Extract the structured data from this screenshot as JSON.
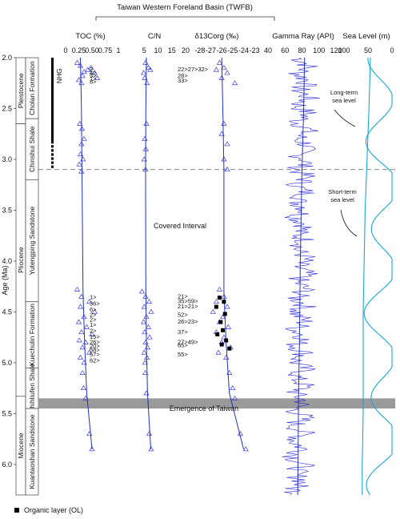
{
  "figure": {
    "basin_title": "Taiwan Western Foreland Basin (TWFB)",
    "y_axis_label": "Age (Ma)",
    "legend_label": "Organic layer (OL)"
  },
  "panels": {
    "toc": {
      "title": "TOC (%)",
      "ticks": [
        "0",
        "0.25",
        "0.50",
        "0.75",
        "1"
      ]
    },
    "cn": {
      "title": "C/N",
      "ticks": [
        "5",
        "10",
        "15",
        "20"
      ]
    },
    "d13c": {
      "title": "δ13Corg (‰)",
      "ticks": [
        "-28",
        "-27",
        "-26",
        "-25",
        "-24",
        "-23"
      ]
    },
    "gamma": {
      "title": "Gamma Ray (API)",
      "ticks": [
        "40",
        "60",
        "80",
        "100",
        "120"
      ]
    },
    "sea": {
      "title": "Sea Level (m)",
      "ticks": [
        "100",
        "50",
        "0"
      ]
    }
  },
  "annotations": {
    "covered": "Covered Interval",
    "emergence": "Emergence of Taiwan",
    "long_term": "Long-term\nsea level",
    "short_term": "Short-term\nsea level",
    "nhg": "NHG"
  },
  "stratigraphy": {
    "epochs": [
      {
        "name": "Pleistocene",
        "from": 2.0,
        "to": 2.65
      },
      {
        "name": "Pliocene",
        "from": 2.65,
        "to": 5.33
      },
      {
        "name": "Miocene",
        "from": 5.33,
        "to": 6.3
      }
    ],
    "formations": [
      {
        "name": "Cholan Formation",
        "from": 2.0,
        "to": 2.6
      },
      {
        "name": "Chinshui Shale",
        "from": 2.6,
        "to": 3.2
      },
      {
        "name": "Yutengping Sandstone",
        "from": 3.2,
        "to": 4.4
      },
      {
        "name": "Kuechulin Formation",
        "from": 4.4,
        "to": 5.05
      },
      {
        "name": "Shihliufen Shale",
        "from": 5.05,
        "to": 5.45
      },
      {
        "name": "Kuantaoshan Sandstone",
        "from": 5.45,
        "to": 6.3
      }
    ]
  },
  "chart_data": {
    "type": "scatter",
    "title": "Taiwan Western Foreland Basin (TWFB)",
    "y_axis": {
      "label": "Age (Ma)",
      "range": [
        2.0,
        6.3
      ],
      "ticks": [
        2.0,
        2.5,
        3.0,
        3.5,
        4.0,
        4.5,
        5.0,
        5.5,
        6.0
      ],
      "inverted": true
    },
    "series": [
      {
        "name": "TOC (%)",
        "range": [
          0,
          1
        ],
        "points": [
          [
            0.28,
            2.08
          ],
          [
            0.42,
            2.12
          ],
          [
            0.55,
            2.15
          ],
          [
            0.32,
            2.18
          ],
          [
            0.6,
            2.2
          ],
          [
            0.25,
            2.22
          ],
          [
            0.48,
            2.1
          ],
          [
            0.22,
            2.05
          ],
          [
            0.35,
            2.14
          ],
          [
            0.3,
            2.25
          ],
          [
            0.27,
            2.65
          ],
          [
            0.31,
            2.7
          ],
          [
            0.35,
            2.8
          ],
          [
            0.3,
            2.85
          ],
          [
            0.28,
            2.95
          ],
          [
            0.33,
            3.0
          ],
          [
            0.26,
            3.05
          ],
          [
            0.3,
            3.12
          ],
          [
            0.22,
            4.28
          ],
          [
            0.3,
            4.35
          ],
          [
            0.45,
            4.4
          ],
          [
            0.28,
            4.45
          ],
          [
            0.55,
            4.5
          ],
          [
            0.35,
            4.55
          ],
          [
            0.25,
            4.6
          ],
          [
            0.4,
            4.65
          ],
          [
            0.3,
            4.7
          ],
          [
            0.5,
            4.72
          ],
          [
            0.26,
            4.78
          ],
          [
            0.38,
            4.8
          ],
          [
            0.32,
            4.85
          ],
          [
            0.45,
            4.9
          ],
          [
            0.28,
            4.95
          ],
          [
            0.35,
            5.0
          ],
          [
            0.32,
            5.1
          ],
          [
            0.34,
            5.25
          ],
          [
            0.38,
            5.35
          ],
          [
            0.45,
            5.7
          ],
          [
            0.5,
            5.85
          ]
        ],
        "trend": [
          [
            0.28,
            2.0
          ],
          [
            0.3,
            2.5
          ],
          [
            0.31,
            3.1
          ],
          [
            0.33,
            4.3
          ],
          [
            0.36,
            4.8
          ],
          [
            0.4,
            5.3
          ],
          [
            0.5,
            5.85
          ]
        ]
      },
      {
        "name": "C/N",
        "range": [
          0,
          20
        ],
        "points": [
          [
            5.5,
            2.05
          ],
          [
            6.5,
            2.1
          ],
          [
            4.8,
            2.15
          ],
          [
            7.2,
            2.12
          ],
          [
            5.2,
            2.2
          ],
          [
            6.0,
            2.25
          ],
          [
            5.8,
            2.65
          ],
          [
            5.2,
            2.8
          ],
          [
            5.6,
            2.9
          ],
          [
            5.0,
            3.0
          ],
          [
            5.5,
            3.1
          ],
          [
            4.2,
            4.3
          ],
          [
            5.5,
            4.35
          ],
          [
            6.8,
            4.4
          ],
          [
            5.0,
            4.45
          ],
          [
            7.5,
            4.5
          ],
          [
            5.8,
            4.55
          ],
          [
            4.8,
            4.6
          ],
          [
            6.5,
            4.65
          ],
          [
            5.2,
            4.7
          ],
          [
            7.0,
            4.75
          ],
          [
            5.5,
            4.8
          ],
          [
            6.2,
            4.85
          ],
          [
            5.0,
            4.9
          ],
          [
            6.0,
            4.95
          ],
          [
            5.3,
            5.0
          ],
          [
            5.4,
            5.1
          ],
          [
            5.8,
            5.3
          ],
          [
            6.8,
            5.7
          ],
          [
            7.5,
            5.85
          ]
        ],
        "trend": [
          [
            5.8,
            2.0
          ],
          [
            5.6,
            2.5
          ],
          [
            5.5,
            3.1
          ],
          [
            5.6,
            4.3
          ],
          [
            5.8,
            4.8
          ],
          [
            6.2,
            5.3
          ],
          [
            7.4,
            5.85
          ]
        ]
      },
      {
        "name": "δ13Corg (‰)",
        "range": [
          -28.5,
          -22.5
        ],
        "points": [
          [
            -26.2,
            2.05
          ],
          [
            -25.8,
            2.1
          ],
          [
            -26.5,
            2.12
          ],
          [
            -25.5,
            2.15
          ],
          [
            -26.0,
            2.2
          ],
          [
            -24.8,
            2.25
          ],
          [
            -25.8,
            2.65
          ],
          [
            -26.0,
            2.75
          ],
          [
            -25.5,
            2.85
          ],
          [
            -25.8,
            3.0
          ],
          [
            -25.5,
            3.1
          ],
          [
            -26.2,
            4.28
          ],
          [
            -25.8,
            4.35
          ],
          [
            -26.5,
            4.4
          ],
          [
            -25.5,
            4.45
          ],
          [
            -26.8,
            4.5
          ],
          [
            -25.9,
            4.55
          ],
          [
            -26.2,
            4.6
          ],
          [
            -25.4,
            4.65
          ],
          [
            -26.5,
            4.7
          ],
          [
            -25.8,
            4.75
          ],
          [
            -26.0,
            4.8
          ],
          [
            -25.2,
            4.85
          ],
          [
            -26.3,
            4.9
          ],
          [
            -25.6,
            4.95
          ],
          [
            -25.3,
            5.1
          ],
          [
            -25.0,
            5.25
          ],
          [
            -24.8,
            5.35
          ],
          [
            -24.3,
            5.7
          ],
          [
            -23.8,
            5.85
          ]
        ],
        "ol_points": [
          [
            -26.2,
            4.36
          ],
          [
            -25.8,
            4.4
          ],
          [
            -26.5,
            4.45
          ],
          [
            -25.7,
            4.52
          ],
          [
            -26.1,
            4.6
          ],
          [
            -25.9,
            4.68
          ],
          [
            -26.4,
            4.72
          ],
          [
            -25.6,
            4.78
          ],
          [
            -26.0,
            4.82
          ],
          [
            -25.3,
            4.86
          ]
        ],
        "trend": [
          [
            -26.0,
            2.0
          ],
          [
            -25.9,
            2.5
          ],
          [
            -25.8,
            3.1
          ],
          [
            -25.8,
            4.3
          ],
          [
            -25.6,
            4.8
          ],
          [
            -25.3,
            5.3
          ],
          [
            -24.0,
            5.85
          ]
        ]
      },
      {
        "name": "Gamma Ray (API)",
        "range": [
          40,
          120
        ],
        "trend": [
          [
            83,
            2.0
          ],
          [
            82,
            2.5
          ],
          [
            80,
            3.1
          ],
          [
            78,
            4.0
          ],
          [
            77,
            4.8
          ],
          [
            76,
            5.3
          ],
          [
            75,
            6.3
          ]
        ]
      },
      {
        "name": "Sea Level (m)",
        "range": [
          100,
          0
        ],
        "long_term": [
          [
            45,
            2.0
          ],
          [
            48,
            2.5
          ],
          [
            52,
            3.0
          ],
          [
            56,
            3.5
          ],
          [
            58,
            4.0
          ],
          [
            60,
            4.5
          ],
          [
            60,
            5.0
          ],
          [
            60,
            5.5
          ],
          [
            62,
            6.0
          ],
          [
            62,
            6.3
          ]
        ]
      }
    ],
    "paleomag": [
      {
        "from": 2.0,
        "to": 2.82,
        "fill": "#000000"
      },
      {
        "from": 2.82,
        "to": 3.1,
        "fill": "#000000",
        "pattern": "dashed"
      }
    ],
    "ol_labels": [
      {
        "panel": "toc",
        "age": 2.12,
        "text": "2"
      },
      {
        "panel": "toc",
        "age": 2.15,
        "text": "4>"
      },
      {
        "panel": "toc",
        "age": 2.18,
        "text": "5>"
      },
      {
        "panel": "toc",
        "age": 2.21,
        "text": "1>"
      },
      {
        "panel": "toc",
        "age": 2.24,
        "text": "8>"
      },
      {
        "panel": "d13c",
        "age": 2.12,
        "text": "22>27>32>"
      },
      {
        "panel": "d13c",
        "age": 2.18,
        "text": "28>"
      },
      {
        "panel": "d13c",
        "age": 2.23,
        "text": "33>"
      },
      {
        "panel": "toc",
        "age": 4.36,
        "text": "1>"
      },
      {
        "panel": "toc",
        "age": 4.42,
        "text": "36>"
      },
      {
        "panel": "toc",
        "age": 4.48,
        "text": "6>"
      },
      {
        "panel": "toc",
        "age": 4.53,
        "text": "2>"
      },
      {
        "panel": "toc",
        "age": 4.58,
        "text": "2>"
      },
      {
        "panel": "toc",
        "age": 4.63,
        "text": "1>"
      },
      {
        "panel": "toc",
        "age": 4.69,
        "text": "2>"
      },
      {
        "panel": "toc",
        "age": 4.75,
        "text": "15>"
      },
      {
        "panel": "toc",
        "age": 4.8,
        "text": "26>"
      },
      {
        "panel": "toc",
        "age": 4.84,
        "text": "20>"
      },
      {
        "panel": "toc",
        "age": 4.88,
        "text": "58>"
      },
      {
        "panel": "toc",
        "age": 4.92,
        "text": "57>"
      },
      {
        "panel": "toc",
        "age": 4.98,
        "text": "62>"
      },
      {
        "panel": "d13c",
        "age": 4.35,
        "text": "21>"
      },
      {
        "panel": "d13c",
        "age": 4.4,
        "text": "35>59>"
      },
      {
        "panel": "d13c",
        "age": 4.45,
        "text": "21>21>"
      },
      {
        "panel": "d13c",
        "age": 4.53,
        "text": "52>"
      },
      {
        "panel": "d13c",
        "age": 4.6,
        "text": "26>23>"
      },
      {
        "panel": "d13c",
        "age": 4.7,
        "text": "37>"
      },
      {
        "panel": "d13c",
        "age": 4.8,
        "text": "27>49>"
      },
      {
        "panel": "d13c",
        "age": 4.83,
        "text": "65>"
      },
      {
        "panel": "d13c",
        "age": 4.92,
        "text": "55>"
      }
    ],
    "covered_interval": [
      3.2,
      4.25
    ],
    "emergence": [
      5.35,
      5.45
    ],
    "dashed_line_age": 3.1
  }
}
